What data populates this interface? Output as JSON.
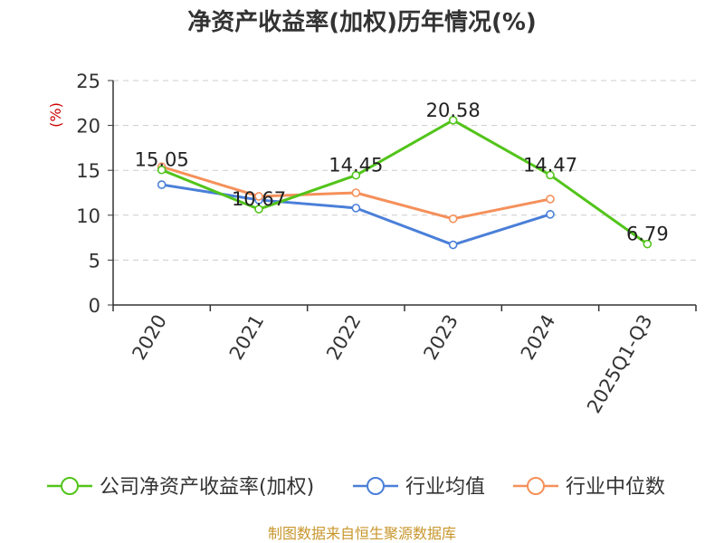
{
  "chart_data": {
    "type": "line",
    "title": "净资产收益率(加权)历年情况(%)",
    "ylabel": "(%)",
    "categories": [
      "2020",
      "2021",
      "2022",
      "2023",
      "2024",
      "2025Q1-Q3"
    ],
    "ylim": [
      0,
      25
    ],
    "yticks": [
      0,
      5,
      10,
      15,
      20,
      25
    ],
    "grid": true,
    "legend_position": "bottom",
    "series": [
      {
        "name": "公司净资产收益率(加权)",
        "color": "#52c41a",
        "values": [
          15.05,
          10.67,
          14.45,
          20.58,
          14.47,
          6.79
        ],
        "labels": [
          "15.05",
          "10.67",
          "14.45",
          "20.58",
          "14.47",
          "6.79"
        ]
      },
      {
        "name": "行业均值",
        "color": "#4a7fd8",
        "values": [
          13.4,
          11.7,
          10.8,
          6.7,
          10.1,
          null
        ]
      },
      {
        "name": "行业中位数",
        "color": "#f5905a",
        "values": [
          15.4,
          12.1,
          12.5,
          9.6,
          11.8,
          null
        ]
      }
    ]
  },
  "footer": {
    "source": "制图数据来自恒生聚源数据库"
  }
}
